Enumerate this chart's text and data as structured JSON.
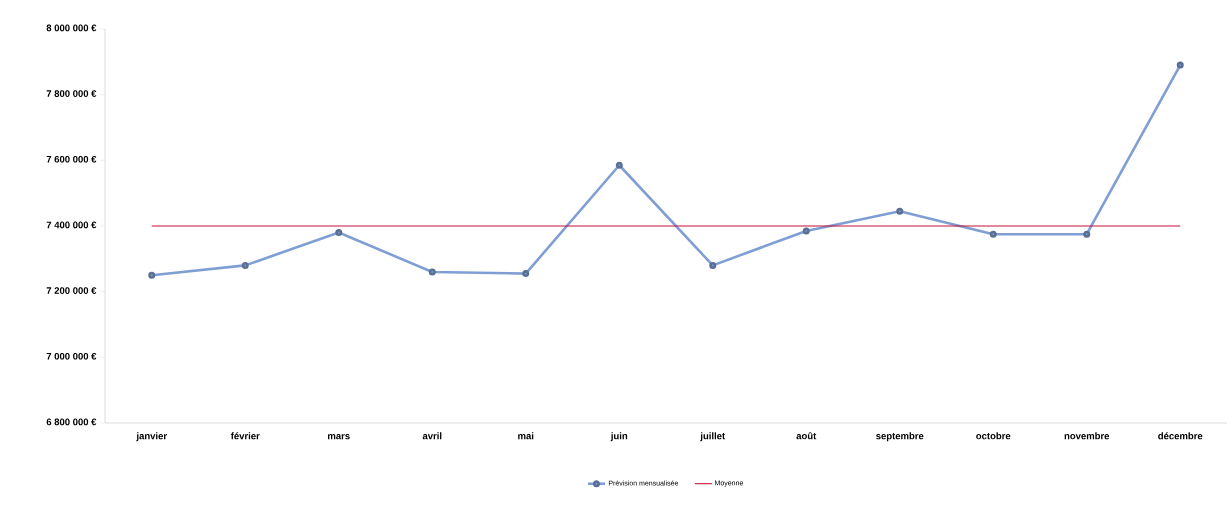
{
  "chart_data": {
    "type": "line",
    "categories": [
      "janvier",
      "février",
      "mars",
      "avril",
      "mai",
      "juin",
      "juillet",
      "août",
      "septembre",
      "octobre",
      "novembre",
      "décembre"
    ],
    "series": [
      {
        "name": "Prévision mensualisée",
        "color": "#7f9fd4",
        "marker": "circle",
        "values": [
          7250000,
          7280000,
          7380000,
          7260000,
          7255000,
          7585000,
          7280000,
          7385000,
          7445000,
          7375000,
          7375000,
          7890000
        ]
      },
      {
        "name": "Moyenne",
        "color": "#c8103c",
        "marker": "none",
        "values": [
          7400000,
          7400000,
          7400000,
          7400000,
          7400000,
          7400000,
          7400000,
          7400000,
          7400000,
          7400000,
          7400000,
          7400000
        ]
      }
    ],
    "ylim": [
      6800000,
      8000000
    ],
    "yticks": [
      {
        "value": 6800000,
        "label": "6 800 000 €"
      },
      {
        "value": 7000000,
        "label": "7 000 000 €"
      },
      {
        "value": 7200000,
        "label": "7 200 000 €"
      },
      {
        "value": 7400000,
        "label": "7 400 000 €"
      },
      {
        "value": 7600000,
        "label": "7 600 000 €"
      },
      {
        "value": 7800000,
        "label": "7 800 000 €"
      },
      {
        "value": 8000000,
        "label": "8 000 000 €"
      }
    ],
    "legend": "bottom",
    "grid": false
  }
}
